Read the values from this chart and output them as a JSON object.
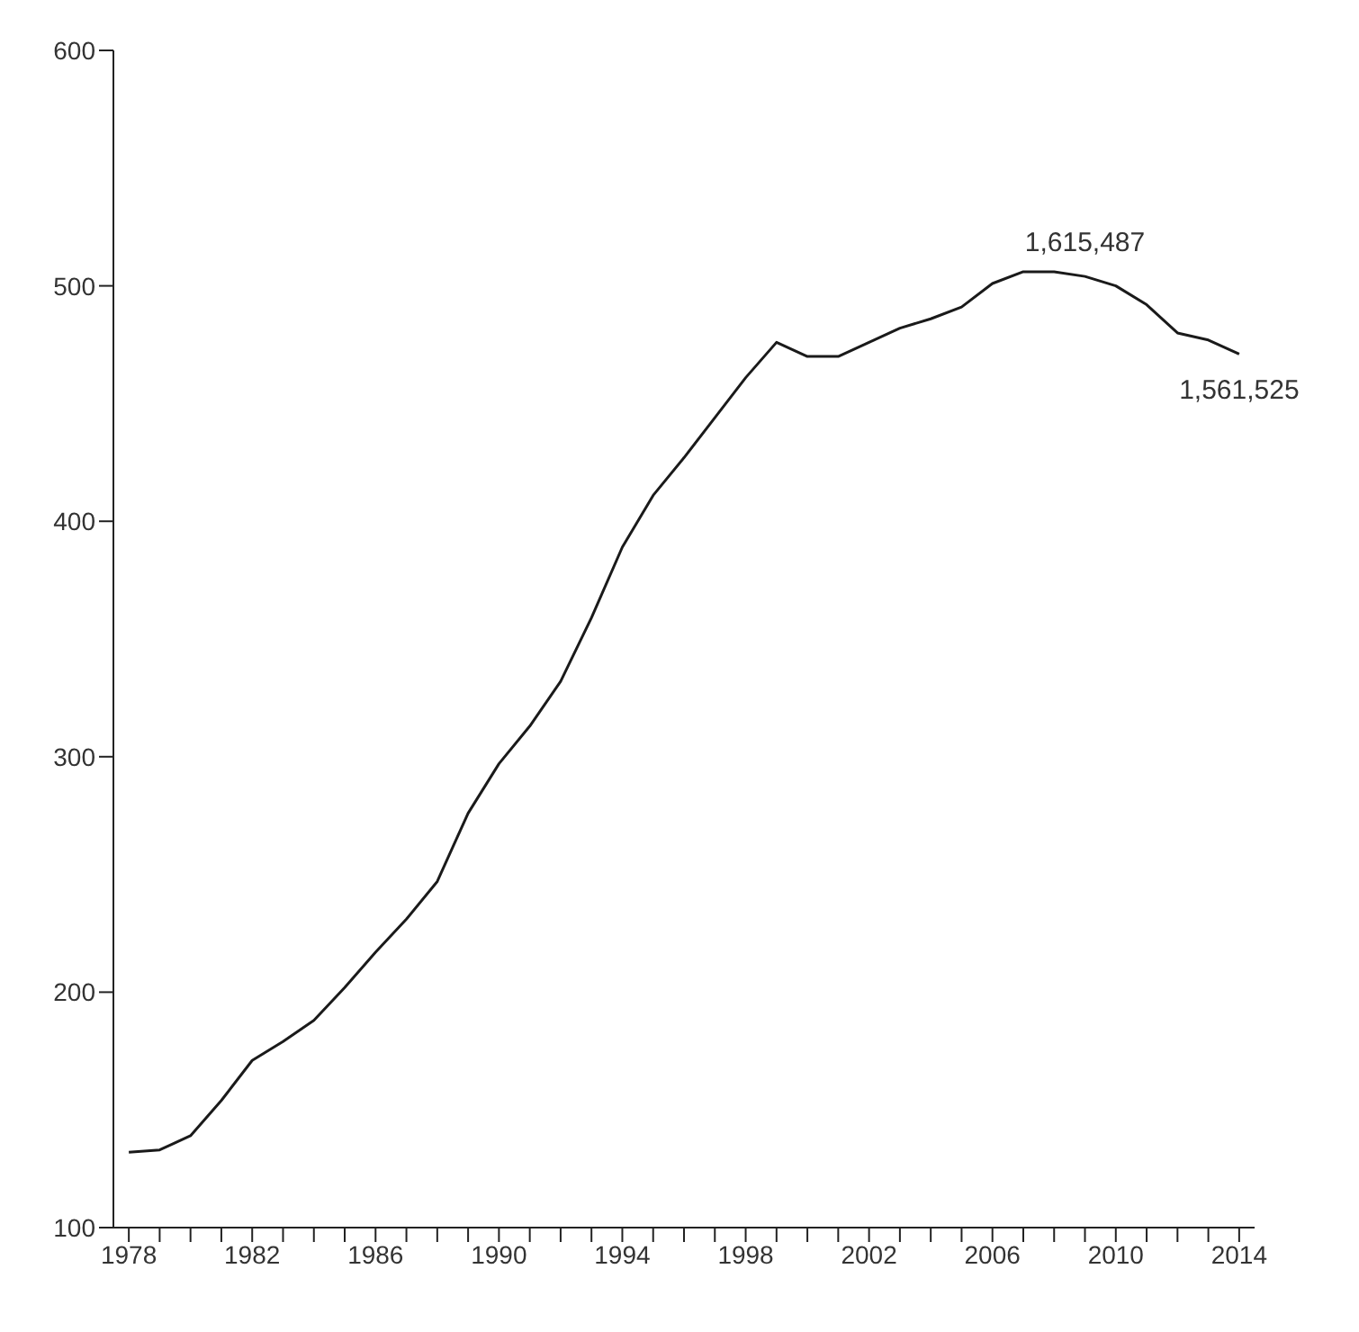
{
  "chart_data": {
    "type": "line",
    "x": [
      1978,
      1979,
      1980,
      1981,
      1982,
      1983,
      1984,
      1985,
      1986,
      1987,
      1988,
      1989,
      1990,
      1991,
      1992,
      1993,
      1994,
      1995,
      1996,
      1997,
      1998,
      1999,
      2000,
      2001,
      2002,
      2003,
      2004,
      2005,
      2006,
      2007,
      2008,
      2009,
      2010,
      2011,
      2012,
      2013,
      2014
    ],
    "series": [
      {
        "color": "#1a1a1a",
        "values": [
          132,
          133,
          139,
          154,
          171,
          179,
          188,
          202,
          217,
          231,
          247,
          276,
          297,
          313,
          332,
          359,
          389,
          411,
          427,
          444,
          461,
          476,
          470,
          470,
          476,
          482,
          486,
          491,
          501,
          506,
          506,
          504,
          500,
          492,
          480,
          477,
          471
        ]
      }
    ],
    "xlim": [
      1977.5,
      2014.5
    ],
    "xticks": [
      1978,
      {
        "value": 1979,
        "label": null
      },
      {
        "value": 1980,
        "label": null
      },
      {
        "value": 1981,
        "label": null
      },
      1982,
      {
        "value": 1983,
        "label": null
      },
      {
        "value": 1984,
        "label": null
      },
      {
        "value": 1985,
        "label": null
      },
      1986,
      {
        "value": 1987,
        "label": null
      },
      {
        "value": 1988,
        "label": null
      },
      {
        "value": 1989,
        "label": null
      },
      1990,
      {
        "value": 1991,
        "label": null
      },
      {
        "value": 1992,
        "label": null
      },
      {
        "value": 1993,
        "label": null
      },
      1994,
      {
        "value": 1995,
        "label": null
      },
      {
        "value": 1996,
        "label": null
      },
      {
        "value": 1997,
        "label": null
      },
      1998,
      {
        "value": 1999,
        "label": null
      },
      {
        "value": 2000,
        "label": null
      },
      {
        "value": 2001,
        "label": null
      },
      2002,
      {
        "value": 2003,
        "label": null
      },
      {
        "value": 2004,
        "label": null
      },
      {
        "value": 2005,
        "label": null
      },
      2006,
      {
        "value": 2007,
        "label": null
      },
      {
        "value": 2008,
        "label": null
      },
      {
        "value": 2009,
        "label": null
      },
      2010,
      {
        "value": 2011,
        "label": null
      },
      {
        "value": 2012,
        "label": null
      },
      {
        "value": 2013,
        "label": null
      },
      2014
    ],
    "ylim": [
      100,
      600
    ],
    "yticks": [
      100,
      200,
      300,
      400,
      500,
      600
    ],
    "annotations": [
      {
        "text": "1,615,487",
        "x": 2009,
        "y": 504
      },
      {
        "text": "1,561,525",
        "x": 2014,
        "y": 471
      }
    ],
    "grid": false,
    "legend": false,
    "marker": "none",
    "line_style": "solid"
  }
}
